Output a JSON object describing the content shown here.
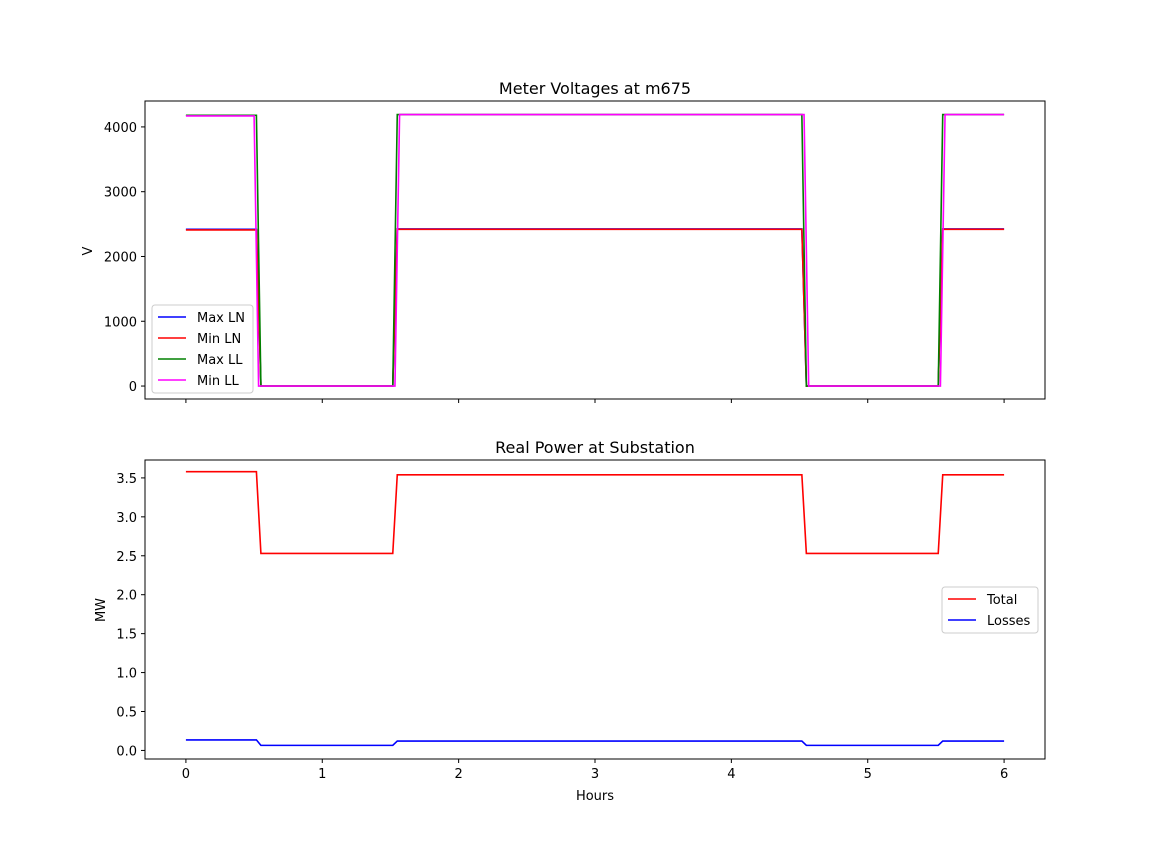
{
  "chart_data": [
    {
      "type": "line",
      "title": "Meter Voltages at m675",
      "xlabel": "",
      "ylabel": "V",
      "xlim": [
        -0.3,
        6.3
      ],
      "ylim": [
        -200,
        4400
      ],
      "yticks": [
        0,
        1000,
        2000,
        3000,
        4000
      ],
      "xticks": [
        0,
        1,
        2,
        3,
        4,
        5,
        6
      ],
      "show_xtick_labels": false,
      "grid": false,
      "legend_position": "lower-left",
      "series": [
        {
          "name": "Max LN",
          "color": "#0000ff",
          "x": [
            0,
            0.517,
            0.55,
            1.517,
            1.55,
            4.517,
            4.55,
            5.517,
            5.55,
            6
          ],
          "y": [
            2420,
            2420,
            0,
            0,
            2425,
            2425,
            0,
            0,
            2425,
            2425
          ]
        },
        {
          "name": "Min LN",
          "color": "#ff0000",
          "x": [
            0,
            0.517,
            0.55,
            1.517,
            1.55,
            4.517,
            4.55,
            5.517,
            5.55,
            6
          ],
          "y": [
            2410,
            2410,
            0,
            0,
            2420,
            2420,
            0,
            0,
            2420,
            2420
          ]
        },
        {
          "name": "Max LL",
          "color": "#008000",
          "x": [
            0,
            0.517,
            0.55,
            1.517,
            1.55,
            4.517,
            4.55,
            5.517,
            5.55,
            6
          ],
          "y": [
            4180,
            4180,
            0,
            0,
            4190,
            4190,
            0,
            0,
            4190,
            4190
          ]
        },
        {
          "name": "Min LL",
          "color": "#ff00ff",
          "x": [
            0,
            0.5,
            0.533,
            1.533,
            1.567,
            4.533,
            4.567,
            5.533,
            5.567,
            6
          ],
          "y": [
            4170,
            4170,
            0,
            0,
            4190,
            4190,
            0,
            0,
            4190,
            4190
          ]
        }
      ]
    },
    {
      "type": "line",
      "title": "Real Power at Substation",
      "xlabel": "Hours",
      "ylabel": "MW",
      "xlim": [
        -0.3,
        6.3
      ],
      "ylim": [
        -0.11,
        3.73
      ],
      "yticks": [
        "0.0",
        "0.5",
        "1.0",
        "1.5",
        "2.0",
        "2.5",
        "3.0",
        "3.5"
      ],
      "xticks": [
        0,
        1,
        2,
        3,
        4,
        5,
        6
      ],
      "show_xtick_labels": true,
      "grid": false,
      "legend_position": "center-right",
      "series": [
        {
          "name": "Total",
          "color": "#ff0000",
          "x": [
            0,
            0.517,
            0.55,
            1.517,
            1.55,
            4.517,
            4.55,
            5.517,
            5.55,
            6
          ],
          "y": [
            3.58,
            3.58,
            2.53,
            2.53,
            3.54,
            3.54,
            2.53,
            2.53,
            3.54,
            3.54
          ]
        },
        {
          "name": "Losses",
          "color": "#0000ff",
          "x": [
            0,
            0.517,
            0.55,
            1.517,
            1.55,
            4.517,
            4.55,
            5.517,
            5.55,
            6
          ],
          "y": [
            0.135,
            0.135,
            0.065,
            0.065,
            0.12,
            0.12,
            0.065,
            0.065,
            0.12,
            0.12
          ]
        }
      ]
    }
  ]
}
